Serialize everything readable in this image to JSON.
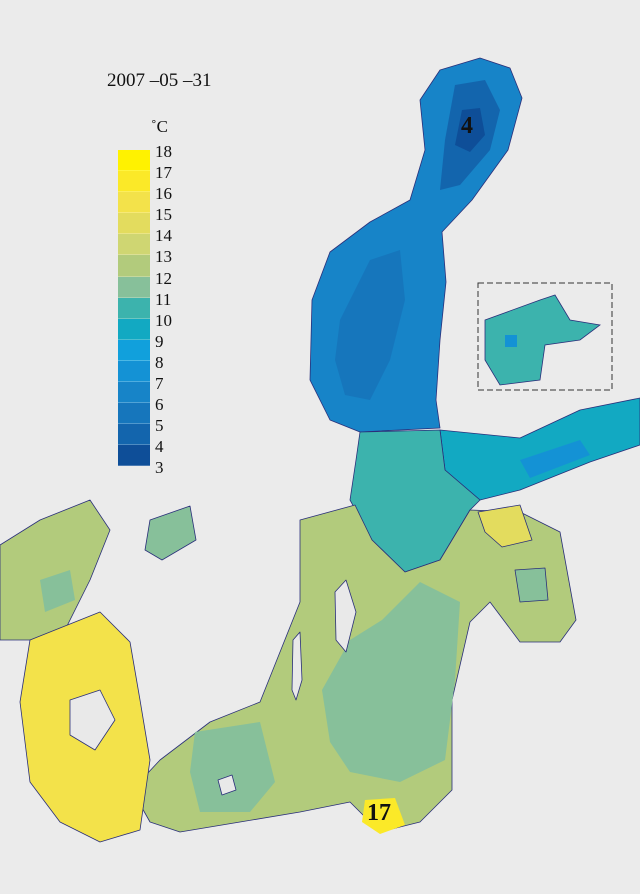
{
  "date": "2007 –05 –31",
  "legend": {
    "unit": "˚C",
    "ticks": [
      "18",
      "17",
      "16",
      "15",
      "14",
      "13",
      "12",
      "11",
      "10",
      "9",
      "8",
      "7",
      "6",
      "5",
      "4",
      "3"
    ],
    "colors": [
      "#fff200",
      "#fbe928",
      "#f3e24a",
      "#e3dc5e",
      "#cfd672",
      "#b2cb7c",
      "#87c09a",
      "#3cb3ad",
      "#12a9c2",
      "#11a0dc",
      "#1492d5",
      "#1784c8",
      "#1676bc",
      "#1365ad",
      "#0e4e98"
    ]
  },
  "labels": {
    "min_value": "4",
    "max_value": "17"
  },
  "colors": {
    "land": "#e9e9e9",
    "coast": "#2a2f7a"
  }
}
